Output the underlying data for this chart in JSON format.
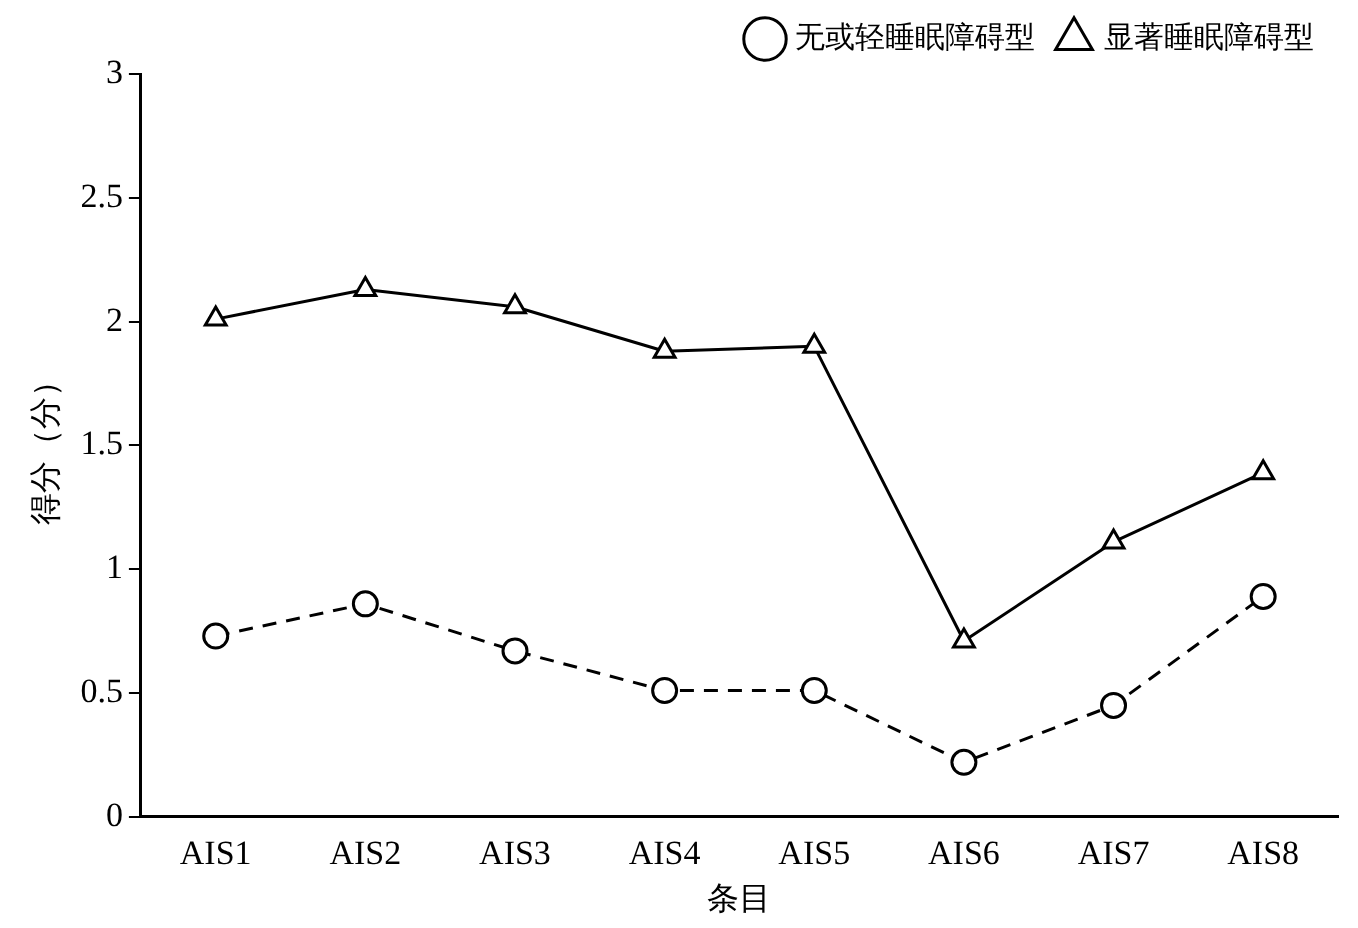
{
  "chart_data": {
    "type": "line",
    "xlabel": "条目",
    "ylabel": "得分（分）",
    "categories": [
      "AIS1",
      "AIS2",
      "AIS3",
      "AIS4",
      "AIS5",
      "AIS6",
      "AIS7",
      "AIS8"
    ],
    "series": [
      {
        "name": "无或轻睡眠障碍型",
        "color": "#000000",
        "marker": "circle",
        "line_style": "dashed",
        "values": [
          0.73,
          0.86,
          0.67,
          0.51,
          0.51,
          0.22,
          0.45,
          0.89
        ]
      },
      {
        "name": "显著睡眠障碍型",
        "color": "#000000",
        "marker": "triangle",
        "line_style": "solid",
        "values": [
          2.01,
          2.13,
          2.06,
          1.88,
          1.9,
          0.71,
          1.11,
          1.39
        ]
      }
    ],
    "ylim": [
      0,
      3
    ],
    "yticks": [
      0,
      0.5,
      1,
      1.5,
      2,
      2.5,
      3
    ],
    "grid": false,
    "legend": "top right"
  }
}
